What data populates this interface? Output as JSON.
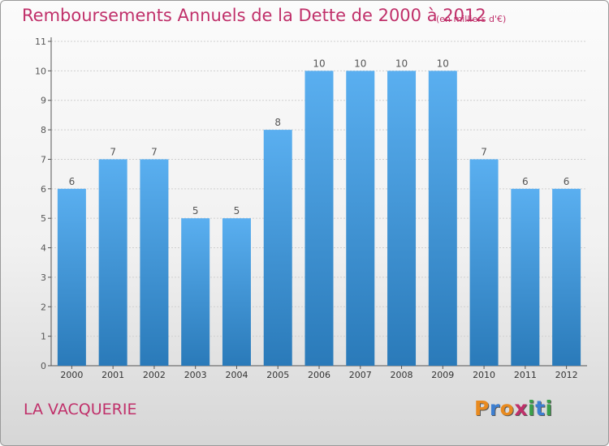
{
  "title": "Remboursements Annuels de la Dette de 2000 à 2012",
  "unit_note": "(en milliers d'€)",
  "commune": "LA VACQUERIE",
  "logo": {
    "text": "Proxiti",
    "colors": [
      "#e88a1f",
      "#3d7fd1",
      "#e88a1f",
      "#c0306a",
      "#3aa04a",
      "#3d7fd1",
      "#3aa04a"
    ]
  },
  "colors": {
    "accent": "#c0306a",
    "bar_top": "#5aaff0",
    "bar_bottom": "#2a7ab9",
    "axis": "#555555",
    "grid": "#cfcfcf"
  },
  "chart_data": {
    "type": "bar",
    "categories": [
      "2000",
      "2001",
      "2002",
      "2003",
      "2004",
      "2005",
      "2006",
      "2007",
      "2008",
      "2009",
      "2010",
      "2011",
      "2012"
    ],
    "values": [
      6,
      7,
      7,
      5,
      5,
      8,
      10,
      10,
      10,
      10,
      7,
      6,
      6
    ],
    "data_labels": [
      "6",
      "7",
      "7",
      "5",
      "5",
      "8",
      "10",
      "10",
      "10",
      "10",
      "7",
      "6",
      "6"
    ],
    "ylim": [
      0,
      11
    ],
    "yticks": [
      "0",
      "1",
      "2",
      "3",
      "4",
      "5",
      "6",
      "7",
      "8",
      "9",
      "10",
      "11"
    ],
    "grid": true
  }
}
